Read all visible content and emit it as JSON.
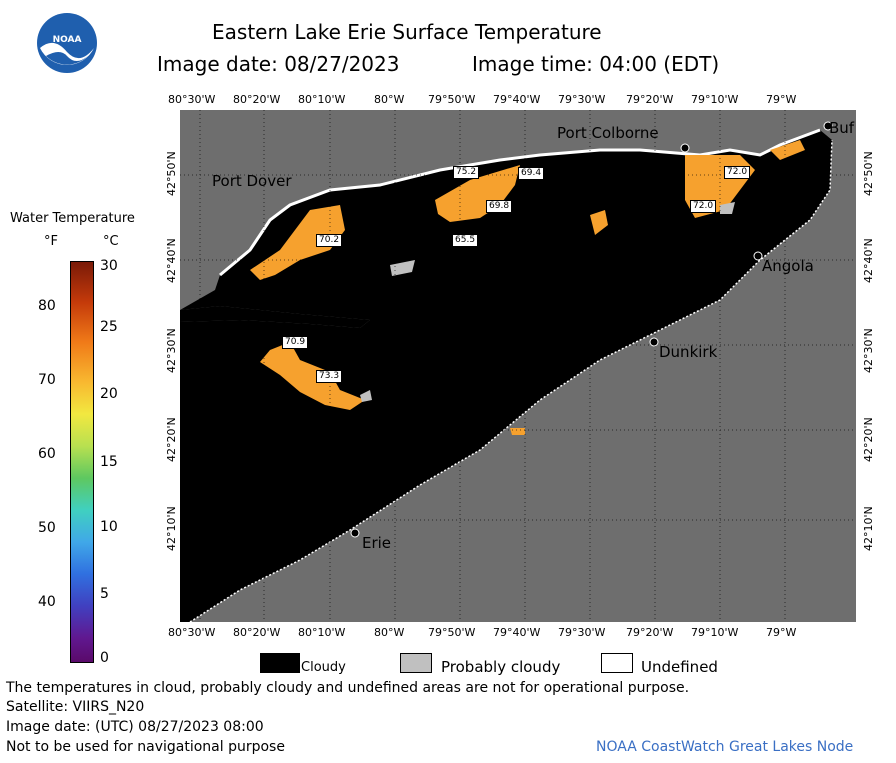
{
  "header": {
    "title": "Eastern Lake Erie Surface Temperature",
    "image_date": "Image date: 08/27/2023",
    "image_time": "Image time: 04:00 (EDT)"
  },
  "logo": {
    "text": "NOAA"
  },
  "colorbar": {
    "title": "Water Temperature",
    "unit_f": "°F",
    "unit_c": "°C",
    "f_ticks": [
      "80",
      "70",
      "60",
      "50",
      "40"
    ],
    "c_ticks": [
      "30",
      "25",
      "20",
      "15",
      "10",
      "5",
      "0"
    ]
  },
  "map": {
    "lon_labels": [
      "80°30'W",
      "80°20'W",
      "80°10'W",
      "80°W",
      "79°50'W",
      "79°40'W",
      "79°30'W",
      "79°20'W",
      "79°10'W",
      "79°W"
    ],
    "lat_labels": [
      "42°50'N",
      "42°40'N",
      "42°30'N",
      "42°20'N",
      "42°10'N"
    ],
    "places": {
      "port_colborne": "Port Colborne",
      "buffalo": "Buf",
      "port_dover": "Port Dover",
      "angola": "Angola",
      "dunkirk": "Dunkirk",
      "erie": "Erie"
    },
    "temps": [
      "75.2",
      "69.4",
      "69.8",
      "72.0",
      "72.0",
      "70.2",
      "65.5",
      "70.9",
      "73.3"
    ],
    "colors": {
      "land": "#6e6e6e",
      "cloud": "#000000",
      "warm": "#f6a12e",
      "probably_cloudy": "#c0c0c0",
      "undefined": "#ffffff"
    }
  },
  "legend": {
    "cloudy": "Cloudy",
    "probably_cloudy": "Probably cloudy",
    "undefined": "Undefined"
  },
  "footer": {
    "disclaimer": "The temperatures in cloud, probably cloudy and undefined areas are not for operational purpose.",
    "satellite": "Satellite: VIIRS_N20",
    "utc_date": "Image date: (UTC) 08/27/2023  08:00",
    "nav": "Not to be used for navigational purpose",
    "credit": "NOAA CoastWatch Great Lakes Node"
  }
}
